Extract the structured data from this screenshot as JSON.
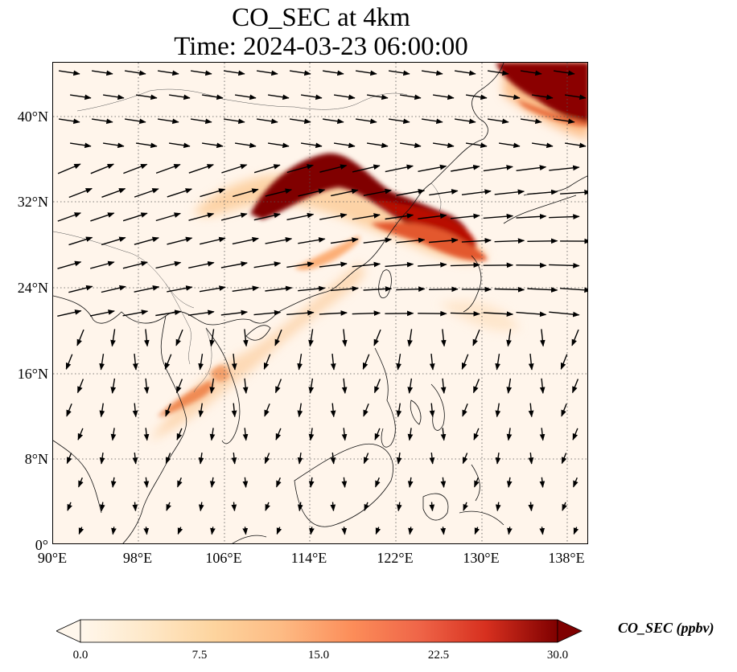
{
  "title": {
    "line1": "CO_SEC at 4km",
    "line2": "Time: 2024-03-23 06:00:00"
  },
  "map": {
    "lon_range": [
      90,
      140
    ],
    "lat_range": [
      0,
      45
    ],
    "gridlines": "dotted",
    "lat_ticks": [
      "0°",
      "8°N",
      "16°N",
      "24°N",
      "32°N",
      "40°N"
    ],
    "lon_ticks": [
      "90°E",
      "98°E",
      "106°E",
      "114°E",
      "122°E",
      "130°E",
      "138°E"
    ],
    "colormap": "OrRd",
    "plumes": [
      {
        "name": "north-china-plume",
        "lon": [
          108,
          119
        ],
        "lat": [
          31,
          36.5
        ],
        "level": 30
      },
      {
        "name": "east-china-sea-plume",
        "lon": [
          117,
          130
        ],
        "lat": [
          27.5,
          33
        ],
        "level": 22
      },
      {
        "name": "northeast-corner-plume",
        "lon": [
          131,
          140
        ],
        "lat": [
          40,
          45
        ],
        "level": 30
      },
      {
        "name": "indochina-plume",
        "lon": [
          98,
          108
        ],
        "lat": [
          12,
          19
        ],
        "level": 12
      }
    ]
  },
  "colorbar": {
    "label": "CO_SEC (ppbv)",
    "min": 0.0,
    "max": 30.0,
    "ticks": [
      "0.0",
      "7.5",
      "15.0",
      "22.5",
      "30.0"
    ],
    "extend": "both"
  }
}
